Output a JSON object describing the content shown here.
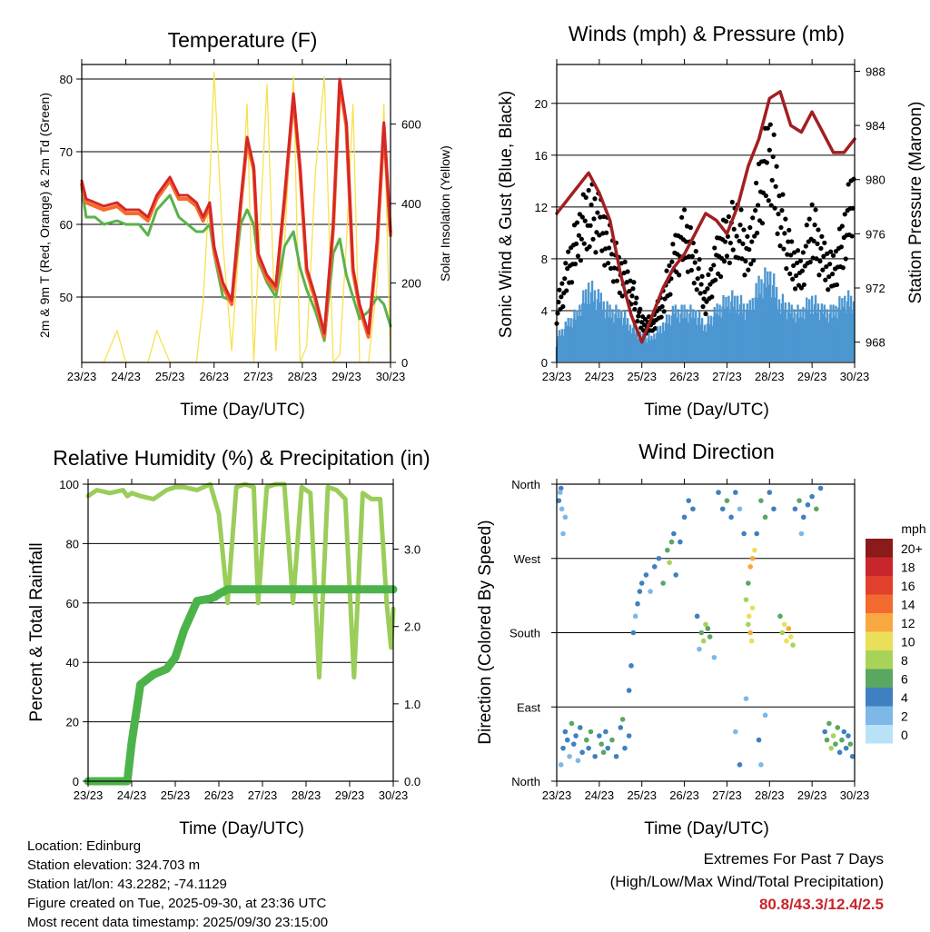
{
  "days": [
    "23/23",
    "24/23",
    "25/23",
    "26/23",
    "27/23",
    "28/23",
    "29/23",
    "30/23"
  ],
  "info": {
    "location": "Location: Edinburg",
    "elevation": "Station elevation: 324.703 m",
    "latlon": "Station lat/lon: 43.2282; -74.1129",
    "created": "Figure created on Tue, 2025-09-30, at 23:36 UTC",
    "recent": "Most recent data timestamp: 2025/09/30 23:15:00"
  },
  "extremes": {
    "line1": "Extremes For Past 7 Days",
    "line2": "(High/Low/Max Wind/Total Precipitation)",
    "values": "80.8/43.3/12.4/2.5"
  },
  "colors": {
    "temp2m": "#d62728",
    "temp9m": "#f46d2a",
    "dew": "#5ab24a",
    "solar": "#f7e24f",
    "gust": "#000000",
    "wind": "#4c97d1",
    "pressure": "#a11f22",
    "rh": "#9acd5a",
    "rain": "#4cb34a"
  },
  "chart_data": [
    {
      "type": "line",
      "title": "Temperature (F)",
      "xlabel": "Time (Day/UTC)",
      "ylabel": "2m & 9m T (Red, Orange) & 2m Td (Green)",
      "y2label": "Solar Insolation (Yellow)",
      "xlim": [
        0,
        7
      ],
      "ylim": [
        41,
        82
      ],
      "y2lim": [
        0,
        750
      ],
      "yticks": [
        50,
        60,
        70,
        80
      ],
      "y2ticks": [
        0,
        200,
        400,
        600
      ],
      "x": [
        0,
        0.1,
        0.3,
        0.5,
        0.8,
        1.0,
        1.3,
        1.5,
        1.7,
        2.0,
        2.2,
        2.4,
        2.6,
        2.75,
        2.9,
        3.0,
        3.2,
        3.4,
        3.6,
        3.75,
        3.9,
        4.0,
        4.2,
        4.4,
        4.6,
        4.8,
        4.95,
        5.1,
        5.3,
        5.5,
        5.7,
        5.85,
        6.0,
        6.15,
        6.3,
        6.5,
        6.7,
        6.85,
        7.0
      ],
      "series": [
        {
          "name": "2m T",
          "values": [
            66,
            63.5,
            63,
            62.5,
            63,
            62,
            62,
            61,
            64,
            66.5,
            64,
            64,
            63,
            61,
            63,
            57,
            52,
            49.5,
            63,
            72,
            68,
            56,
            53,
            51.5,
            64,
            78,
            68,
            54,
            50,
            45,
            60,
            80,
            74,
            54,
            49,
            45,
            58,
            74,
            59
          ]
        },
        {
          "name": "9m T",
          "values": [
            65.5,
            63,
            62.5,
            62,
            62.5,
            61.5,
            61.5,
            60.5,
            63.5,
            66,
            63.5,
            63.5,
            62.5,
            60.5,
            62.5,
            56.5,
            51.5,
            49,
            62.5,
            71.5,
            67.5,
            55.5,
            52.5,
            51,
            63.5,
            77.5,
            67.5,
            53.5,
            49.5,
            44.5,
            59.5,
            79.5,
            73.5,
            53.5,
            48.5,
            44.5,
            57.5,
            73.5,
            58.5
          ]
        },
        {
          "name": "2m Td",
          "values": [
            65,
            61,
            61,
            60,
            60.5,
            60,
            60,
            58.5,
            62,
            64,
            61,
            60,
            59,
            59,
            60,
            56,
            50,
            49.5,
            60,
            62,
            60,
            55,
            52,
            50,
            57,
            59,
            54,
            51,
            48,
            44,
            56,
            58,
            53,
            50,
            47,
            48,
            50,
            49,
            46
          ]
        },
        {
          "name": "Solar Insolation",
          "values": [
            0,
            0,
            0,
            0,
            80,
            0,
            0,
            0,
            80,
            0,
            0,
            0,
            0,
            150,
            450,
            730,
            300,
            30,
            350,
            650,
            0,
            250,
            700,
            30,
            300,
            720,
            0,
            40,
            480,
            720,
            0,
            20,
            300,
            650,
            0,
            0,
            200,
            650,
            0
          ]
        }
      ]
    },
    {
      "type": "scatter",
      "title": "Winds (mph) & Pressure (mb)",
      "xlabel": "Time (Day/UTC)",
      "ylabel": "Sonic Wind & Gust (Blue, Black)",
      "y2label": "Station Pressure (Maroon)",
      "xlim": [
        0,
        7
      ],
      "ylim": [
        0,
        23
      ],
      "y2lim": [
        966.5,
        988.5
      ],
      "yticks": [
        0,
        4,
        8,
        12,
        16,
        20
      ],
      "y2ticks": [
        968,
        972,
        976,
        980,
        984,
        988
      ],
      "x": [
        0,
        0.25,
        0.5,
        0.75,
        1.0,
        1.25,
        1.5,
        1.75,
        2.0,
        2.25,
        2.5,
        2.75,
        3.0,
        3.25,
        3.5,
        3.75,
        4.0,
        4.25,
        4.5,
        4.75,
        5.0,
        5.25,
        5.5,
        5.75,
        6.0,
        6.25,
        6.5,
        6.75,
        7.0
      ],
      "series": [
        {
          "name": "Wind",
          "values": [
            2,
            3,
            4,
            6,
            5,
            4,
            4,
            3,
            2,
            2,
            3,
            4,
            4,
            4,
            3,
            4,
            5,
            5,
            4,
            6,
            7,
            5,
            4,
            4,
            5,
            4,
            4,
            5,
            5
          ]
        },
        {
          "name": "Gust",
          "values": [
            4,
            7,
            10,
            12,
            11,
            9,
            7,
            6,
            3,
            3,
            5,
            8,
            10,
            8,
            5,
            8,
            10,
            11,
            8,
            13,
            17,
            12,
            8,
            7,
            11,
            8,
            7,
            10,
            14
          ]
        },
        {
          "name": "Pressure",
          "values": [
            977.5,
            978.5,
            979.5,
            980.5,
            979,
            977,
            973,
            970,
            968,
            970,
            972,
            973.5,
            974.5,
            976,
            977.5,
            977,
            976,
            978,
            981,
            983,
            986,
            986.5,
            984,
            983.5,
            985,
            983.5,
            982,
            982,
            983
          ]
        }
      ]
    },
    {
      "type": "line",
      "title": "Relative Humidity (%) & Precipitation (in)",
      "xlabel": "Time (Day/UTC)",
      "ylabel": "Percent & Total Rainfall",
      "xlim": [
        0,
        7
      ],
      "ylim": [
        0,
        100
      ],
      "y2lim": [
        0,
        3.84
      ],
      "yticks": [
        0,
        20,
        40,
        60,
        80,
        100
      ],
      "y2ticks": [
        0.0,
        1.0,
        2.0,
        3.0
      ],
      "x": [
        0,
        0.2,
        0.5,
        0.8,
        0.9,
        1.0,
        1.2,
        1.5,
        1.8,
        2.0,
        2.2,
        2.5,
        2.8,
        2.9,
        3.0,
        3.2,
        3.4,
        3.6,
        3.8,
        3.9,
        4.1,
        4.3,
        4.5,
        4.7,
        4.9,
        5.1,
        5.3,
        5.5,
        5.7,
        5.9,
        6.1,
        6.3,
        6.5,
        6.7,
        6.85,
        6.95,
        7.0
      ],
      "series": [
        {
          "name": "RH",
          "values": [
            96,
            98,
            97,
            98,
            96,
            97,
            96,
            95,
            98,
            99,
            99,
            98,
            100,
            95,
            90,
            60,
            99,
            100,
            99,
            60,
            99,
            100,
            100,
            60,
            99,
            97,
            35,
            99,
            98,
            95,
            35,
            97,
            95,
            95,
            60,
            45,
            58
          ]
        },
        {
          "name": "Precipitation",
          "values": [
            0,
            0,
            0,
            0,
            0,
            0.5,
            1.25,
            1.38,
            1.45,
            1.6,
            1.95,
            2.33,
            2.36,
            2.38,
            2.42,
            2.48,
            2.48,
            2.48,
            2.48,
            2.48,
            2.48,
            2.48,
            2.48,
            2.48,
            2.48,
            2.48,
            2.48,
            2.48,
            2.48,
            2.48,
            2.48,
            2.48,
            2.48,
            2.48,
            2.48,
            2.48,
            2.48
          ]
        }
      ]
    },
    {
      "type": "scatter",
      "title": "Wind Direction",
      "xlabel": "Time (Day/UTC)",
      "ylabel": "Direction (Colored By Speed)",
      "xlim": [
        0,
        7
      ],
      "ylim": [
        0,
        360
      ],
      "yticklabels": [
        "North",
        "East",
        "South",
        "West",
        "North"
      ],
      "legend_title": "mph",
      "legend_labels": [
        "20+",
        "18",
        "16",
        "14",
        "12",
        "10",
        "8",
        "6",
        "4",
        "2",
        "0"
      ],
      "legend_colors": [
        "#8b1a1a",
        "#c8262c",
        "#e0402c",
        "#f26a30",
        "#f8a840",
        "#eadf58",
        "#a7d458",
        "#5aa762",
        "#3f80c0",
        "#7db8e6",
        "#b9e2f7"
      ],
      "points": [
        [
          0.1,
          20,
          2
        ],
        [
          0.15,
          40,
          3
        ],
        [
          0.2,
          60,
          4
        ],
        [
          0.25,
          50,
          3
        ],
        [
          0.3,
          30,
          2
        ],
        [
          0.35,
          70,
          5
        ],
        [
          0.4,
          45,
          3
        ],
        [
          0.45,
          55,
          4
        ],
        [
          0.5,
          25,
          2
        ],
        [
          0.55,
          65,
          4
        ],
        [
          0.6,
          35,
          3
        ],
        [
          0.7,
          50,
          6
        ],
        [
          0.75,
          40,
          4
        ],
        [
          0.8,
          60,
          5
        ],
        [
          0.9,
          30,
          3
        ],
        [
          1.0,
          55,
          4
        ],
        [
          1.05,
          45,
          5
        ],
        [
          1.1,
          35,
          6
        ],
        [
          1.15,
          60,
          3
        ],
        [
          1.2,
          40,
          4
        ],
        [
          1.3,
          50,
          5
        ],
        [
          1.4,
          30,
          3
        ],
        [
          1.5,
          65,
          4
        ],
        [
          1.55,
          75,
          5
        ],
        [
          1.6,
          40,
          3
        ],
        [
          1.7,
          55,
          4
        ],
        [
          0.05,
          340,
          3
        ],
        [
          0.1,
          355,
          4
        ],
        [
          0.12,
          330,
          2
        ],
        [
          0.2,
          320,
          1
        ],
        [
          0.15,
          300,
          2
        ],
        [
          0.08,
          350,
          1
        ],
        [
          1.7,
          110,
          3
        ],
        [
          1.75,
          140,
          4
        ],
        [
          1.8,
          180,
          3
        ],
        [
          1.85,
          200,
          2
        ],
        [
          1.9,
          215,
          4
        ],
        [
          1.95,
          230,
          3
        ],
        [
          2.0,
          240,
          4
        ],
        [
          2.1,
          250,
          3
        ],
        [
          2.2,
          230,
          2
        ],
        [
          2.3,
          260,
          4
        ],
        [
          2.4,
          270,
          3
        ],
        [
          2.5,
          240,
          5
        ],
        [
          2.6,
          280,
          6
        ],
        [
          2.65,
          265,
          7
        ],
        [
          2.7,
          290,
          5
        ],
        [
          2.75,
          300,
          4
        ],
        [
          2.8,
          250,
          3
        ],
        [
          2.9,
          290,
          4
        ],
        [
          3.0,
          320,
          3
        ],
        [
          3.1,
          340,
          4
        ],
        [
          3.2,
          330,
          3
        ],
        [
          3.4,
          180,
          6
        ],
        [
          3.45,
          170,
          7
        ],
        [
          3.5,
          190,
          8
        ],
        [
          3.55,
          185,
          6
        ],
        [
          3.6,
          175,
          5
        ],
        [
          3.3,
          200,
          3
        ],
        [
          3.35,
          160,
          2
        ],
        [
          3.7,
          150,
          1
        ],
        [
          3.8,
          350,
          4
        ],
        [
          3.9,
          330,
          3
        ],
        [
          4.0,
          340,
          5
        ],
        [
          4.1,
          320,
          3
        ],
        [
          4.2,
          350,
          4
        ],
        [
          4.3,
          330,
          2
        ],
        [
          4.4,
          300,
          3
        ],
        [
          4.2,
          60,
          2
        ],
        [
          4.3,
          20,
          3
        ],
        [
          4.45,
          100,
          1
        ],
        [
          4.5,
          190,
          8
        ],
        [
          4.52,
          200,
          10
        ],
        [
          4.55,
          180,
          11
        ],
        [
          4.58,
          170,
          10
        ],
        [
          4.6,
          210,
          9
        ],
        [
          4.5,
          240,
          6
        ],
        [
          4.55,
          260,
          12
        ],
        [
          4.6,
          270,
          11
        ],
        [
          4.65,
          280,
          10
        ],
        [
          4.45,
          220,
          7
        ],
        [
          4.7,
          300,
          4
        ],
        [
          4.8,
          340,
          5
        ],
        [
          4.9,
          320,
          6
        ],
        [
          5.0,
          350,
          4
        ],
        [
          5.1,
          330,
          3
        ],
        [
          4.75,
          50,
          3
        ],
        [
          4.8,
          20,
          2
        ],
        [
          4.9,
          80,
          1
        ],
        [
          5.3,
          180,
          8
        ],
        [
          5.35,
          190,
          9
        ],
        [
          5.4,
          170,
          10
        ],
        [
          5.45,
          185,
          11
        ],
        [
          5.5,
          175,
          9
        ],
        [
          5.25,
          200,
          6
        ],
        [
          5.55,
          165,
          7
        ],
        [
          5.6,
          330,
          4
        ],
        [
          5.7,
          340,
          5
        ],
        [
          5.8,
          320,
          4
        ],
        [
          5.9,
          335,
          3
        ],
        [
          6.0,
          345,
          4
        ],
        [
          6.1,
          330,
          5
        ],
        [
          6.2,
          355,
          3
        ],
        [
          5.75,
          300,
          2
        ],
        [
          6.3,
          60,
          4
        ],
        [
          6.35,
          50,
          5
        ],
        [
          6.4,
          70,
          6
        ],
        [
          6.45,
          40,
          7
        ],
        [
          6.5,
          55,
          8
        ],
        [
          6.55,
          45,
          6
        ],
        [
          6.6,
          65,
          5
        ],
        [
          6.65,
          35,
          4
        ],
        [
          6.7,
          50,
          5
        ],
        [
          6.75,
          60,
          4
        ],
        [
          6.8,
          40,
          3
        ],
        [
          6.85,
          55,
          4
        ],
        [
          6.9,
          45,
          5
        ],
        [
          6.95,
          30,
          3
        ]
      ]
    }
  ]
}
